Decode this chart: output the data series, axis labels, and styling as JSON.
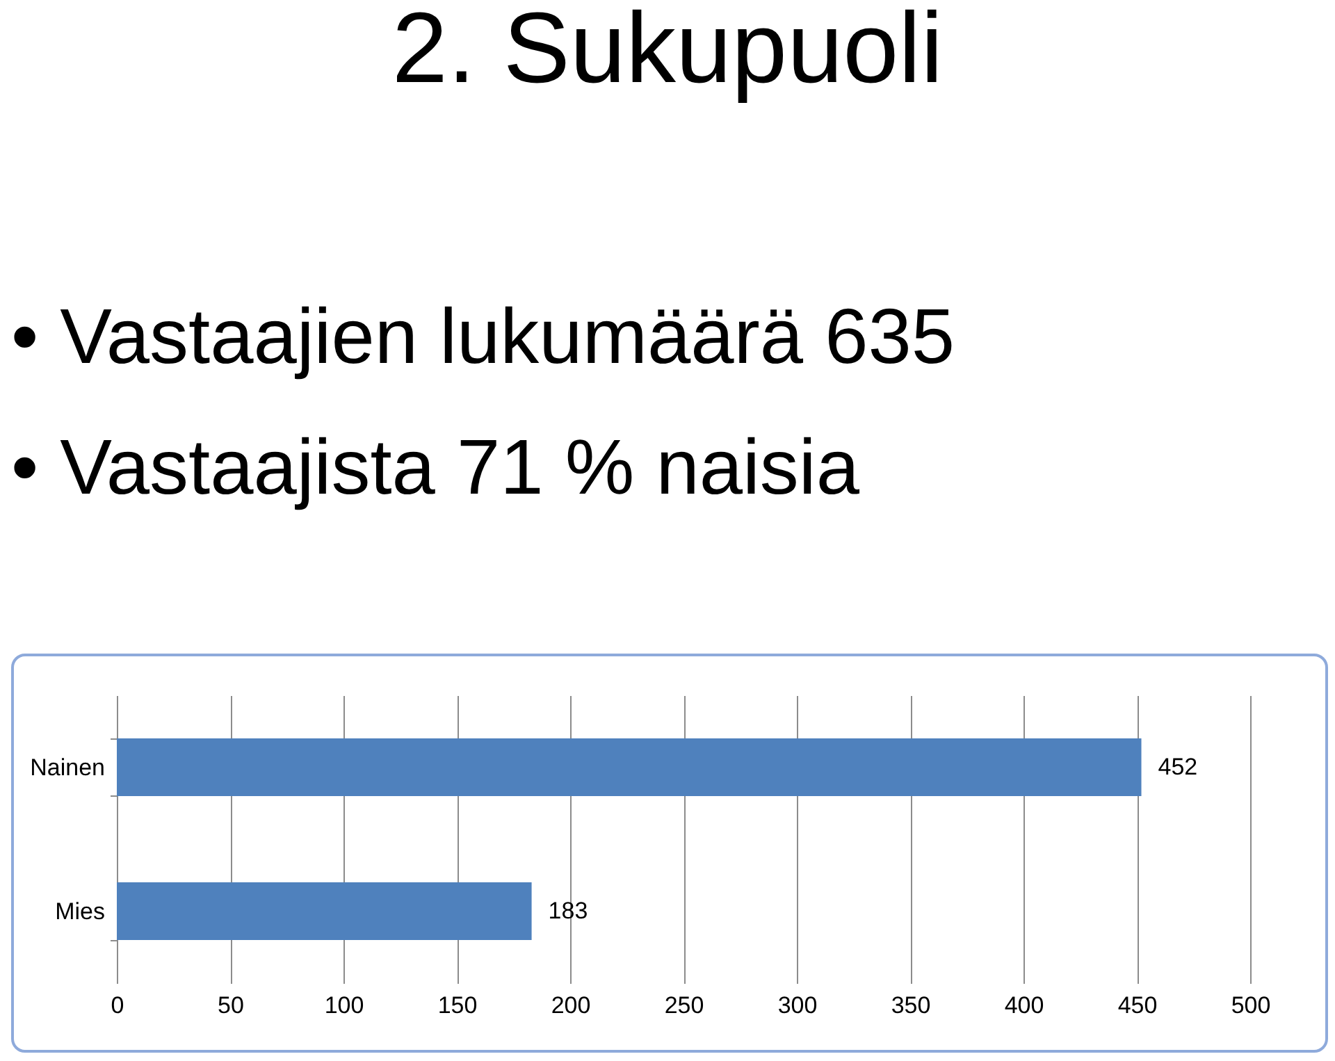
{
  "chart_data": {
    "type": "bar",
    "title": "2. Sukupuoli",
    "annotations": [
      "• Vastaajien lukumäärä 635",
      "• Vastaajista 71 % naisia"
    ],
    "orientation": "horizontal",
    "categories": [
      "Nainen",
      "Mies"
    ],
    "values": [
      452,
      183
    ],
    "color": "#4f81bd",
    "xlim": [
      0,
      500
    ],
    "xticks": [
      0,
      50,
      100,
      150,
      200,
      250,
      300,
      350,
      400,
      450,
      500
    ],
    "grid": "x",
    "data_labels": true
  }
}
